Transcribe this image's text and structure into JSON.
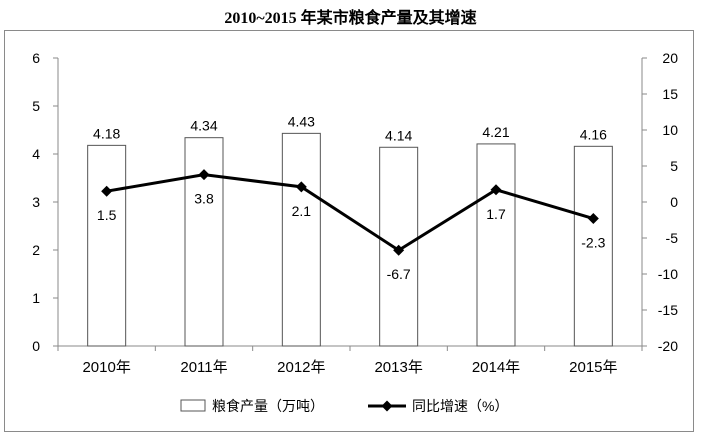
{
  "chart_data": {
    "type": "bar",
    "title": "2010~2015 年某市粮食产量及其增速",
    "categories": [
      "2010年",
      "2011年",
      "2012年",
      "2013年",
      "2014年",
      "2015年"
    ],
    "series": [
      {
        "name": "粮食产量（万吨）",
        "type": "bar",
        "axis": "left",
        "values": [
          4.18,
          4.34,
          4.43,
          4.14,
          4.21,
          4.16
        ],
        "labels": [
          "4.18",
          "4.34",
          "4.43",
          "4.14",
          "4.21",
          "4.16"
        ]
      },
      {
        "name": "同比增速（%）",
        "type": "line",
        "axis": "right",
        "marker": "diamond",
        "values": [
          1.5,
          3.8,
          2.1,
          -6.7,
          1.7,
          -2.3
        ],
        "labels": [
          "1.5",
          "3.8",
          "2.1",
          "-6.7",
          "1.7",
          "-2.3"
        ]
      }
    ],
    "y_left": {
      "min": 0,
      "max": 6,
      "step": 1,
      "ticks": [
        "0",
        "1",
        "2",
        "3",
        "4",
        "5",
        "6"
      ]
    },
    "y_right": {
      "min": -20,
      "max": 20,
      "step": 5,
      "ticks": [
        "-20",
        "-15",
        "-10",
        "-5",
        "0",
        "5",
        "10",
        "15",
        "20"
      ]
    },
    "grid": false,
    "legend": {
      "position": "bottom"
    },
    "colors": {
      "bar_fill": "#ffffff",
      "bar_stroke": "#555555",
      "line": "#000000",
      "axis": "#8a8a8a"
    }
  }
}
